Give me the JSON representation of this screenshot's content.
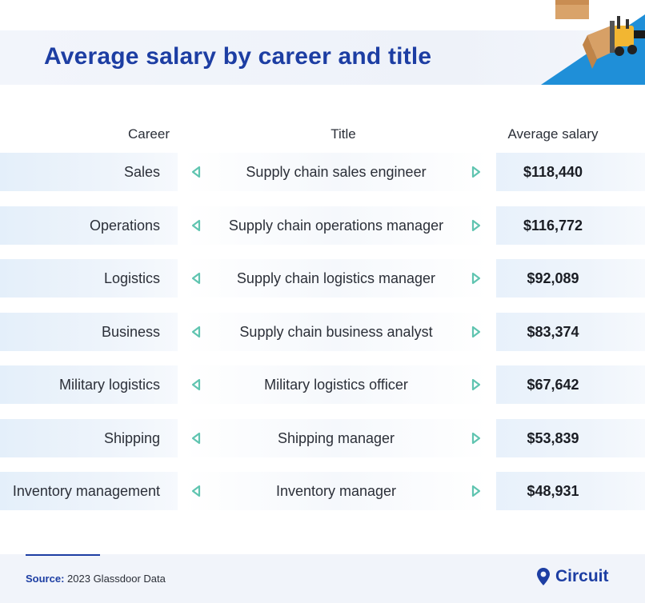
{
  "header": {
    "title": "Average salary by career and title"
  },
  "columns": {
    "career": "Career",
    "title": "Title",
    "salary": "Average salary"
  },
  "rows": [
    {
      "career": "Sales",
      "title": "Supply chain sales engineer",
      "salary": "$118,440"
    },
    {
      "career": "Operations",
      "title": "Supply chain operations manager",
      "salary": "$116,772"
    },
    {
      "career": "Logistics",
      "title": "Supply chain logistics manager",
      "salary": "$92,089"
    },
    {
      "career": "Business",
      "title": "Supply chain business analyst",
      "salary": "$83,374"
    },
    {
      "career": "Military logistics",
      "title": "Military logistics officer",
      "salary": "$67,642"
    },
    {
      "career": "Shipping",
      "title": "Shipping manager",
      "salary": "$53,839"
    },
    {
      "career": "Inventory management",
      "title": "Inventory manager",
      "salary": "$48,931"
    }
  ],
  "footer": {
    "source_label": "Source:",
    "source_text": "2023 Glassdoor Data",
    "brand": "Circuit"
  },
  "colors": {
    "accent": "#1d3ea3",
    "arrow": "#5fc4b0",
    "decor_blue": "#1f8fd8"
  },
  "icons": {
    "left_arrow": "chevron-left-icon",
    "right_arrow": "chevron-right-icon",
    "brand_logo": "location-pin-icon"
  },
  "chart_data": {
    "type": "table",
    "title": "Average salary by career and title",
    "columns": [
      "Career",
      "Title",
      "Average salary"
    ],
    "rows": [
      [
        "Sales",
        "Supply chain sales engineer",
        "$118,440"
      ],
      [
        "Operations",
        "Supply chain operations manager",
        "$116,772"
      ],
      [
        "Logistics",
        "Supply chain logistics manager",
        "$92,089"
      ],
      [
        "Business",
        "Supply chain business analyst",
        "$83,374"
      ],
      [
        "Military logistics",
        "Military logistics officer",
        "$67,642"
      ],
      [
        "Shipping",
        "Shipping manager",
        "$53,839"
      ],
      [
        "Inventory management",
        "Inventory manager",
        "$48,931"
      ]
    ],
    "values": [
      118440,
      116772,
      92089,
      83374,
      67642,
      53839,
      48931
    ]
  }
}
